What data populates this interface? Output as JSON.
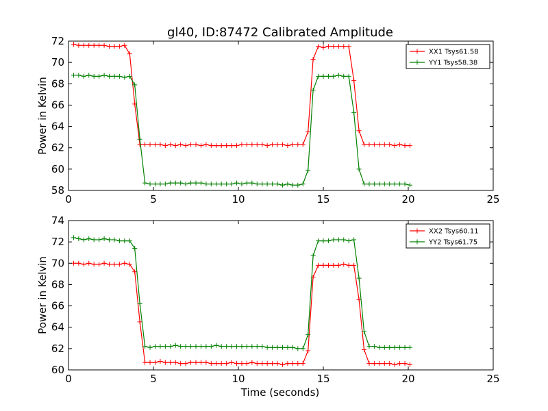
{
  "figure": {
    "title": "gl40, ID:87472 Calibrated Amplitude",
    "xlabel": "Time (seconds)"
  },
  "chart_data": [
    {
      "type": "line",
      "ylabel": "Power in Kelvin",
      "xlim": [
        0,
        25
      ],
      "ylim": [
        58,
        72
      ],
      "xticks": [
        0,
        5,
        10,
        15,
        20,
        25
      ],
      "yticks": [
        58,
        60,
        62,
        64,
        66,
        68,
        70,
        72
      ],
      "grid": false,
      "legend_position": "top-right",
      "x": [
        0.3,
        0.6,
        0.9,
        1.2,
        1.5,
        1.8,
        2.1,
        2.4,
        2.7,
        3.0,
        3.3,
        3.6,
        3.9,
        4.2,
        4.5,
        4.8,
        5.1,
        5.4,
        5.7,
        6.0,
        6.3,
        6.6,
        6.9,
        7.2,
        7.5,
        7.8,
        8.1,
        8.4,
        8.7,
        9.0,
        9.3,
        9.6,
        9.9,
        10.2,
        10.5,
        10.8,
        11.1,
        11.4,
        11.7,
        12.0,
        12.3,
        12.6,
        12.9,
        13.2,
        13.5,
        13.8,
        14.1,
        14.4,
        14.7,
        15.0,
        15.3,
        15.6,
        15.9,
        16.2,
        16.5,
        16.8,
        17.1,
        17.4,
        17.7,
        18.0,
        18.3,
        18.6,
        18.9,
        19.2,
        19.5,
        19.8,
        20.1
      ],
      "series": [
        {
          "name": "XX1 Tsys61.58",
          "color": "#ff0000",
          "values": [
            71.7,
            71.6,
            71.6,
            71.6,
            71.6,
            71.6,
            71.6,
            71.5,
            71.5,
            71.5,
            71.6,
            70.8,
            66.1,
            62.3,
            62.3,
            62.3,
            62.3,
            62.3,
            62.2,
            62.3,
            62.2,
            62.3,
            62.2,
            62.3,
            62.3,
            62.2,
            62.3,
            62.2,
            62.2,
            62.2,
            62.2,
            62.2,
            62.2,
            62.3,
            62.3,
            62.3,
            62.3,
            62.3,
            62.2,
            62.3,
            62.3,
            62.3,
            62.2,
            62.3,
            62.3,
            62.3,
            63.5,
            70.3,
            71.5,
            71.4,
            71.5,
            71.5,
            71.5,
            71.5,
            71.5,
            68.3,
            63.6,
            62.3,
            62.3,
            62.3,
            62.3,
            62.3,
            62.3,
            62.2,
            62.3,
            62.2,
            62.2
          ]
        },
        {
          "name": "YY1 Tsys58.38",
          "color": "#008000",
          "values": [
            68.8,
            68.8,
            68.7,
            68.8,
            68.7,
            68.7,
            68.8,
            68.7,
            68.7,
            68.7,
            68.6,
            68.7,
            67.9,
            62.8,
            58.7,
            58.6,
            58.6,
            58.6,
            58.6,
            58.7,
            58.7,
            58.7,
            58.6,
            58.7,
            58.7,
            58.7,
            58.6,
            58.6,
            58.6,
            58.6,
            58.6,
            58.6,
            58.7,
            58.6,
            58.7,
            58.7,
            58.6,
            58.6,
            58.6,
            58.6,
            58.6,
            58.5,
            58.6,
            58.5,
            58.5,
            58.6,
            59.9,
            67.4,
            68.7,
            68.7,
            68.7,
            68.7,
            68.8,
            68.7,
            68.7,
            65.3,
            60.0,
            58.6,
            58.6,
            58.6,
            58.6,
            58.6,
            58.6,
            58.6,
            58.6,
            58.6,
            58.5
          ]
        }
      ]
    },
    {
      "type": "line",
      "ylabel": "Power in Kelvin",
      "xlabel": "Time (seconds)",
      "xlim": [
        0,
        25
      ],
      "ylim": [
        60,
        74
      ],
      "xticks": [
        0,
        5,
        10,
        15,
        20,
        25
      ],
      "yticks": [
        60,
        62,
        64,
        66,
        68,
        70,
        72,
        74
      ],
      "grid": false,
      "legend_position": "top-right",
      "x": [
        0.3,
        0.6,
        0.9,
        1.2,
        1.5,
        1.8,
        2.1,
        2.4,
        2.7,
        3.0,
        3.3,
        3.6,
        3.9,
        4.2,
        4.5,
        4.8,
        5.1,
        5.4,
        5.7,
        6.0,
        6.3,
        6.6,
        6.9,
        7.2,
        7.5,
        7.8,
        8.1,
        8.4,
        8.7,
        9.0,
        9.3,
        9.6,
        9.9,
        10.2,
        10.5,
        10.8,
        11.1,
        11.4,
        11.7,
        12.0,
        12.3,
        12.6,
        12.9,
        13.2,
        13.5,
        13.8,
        14.1,
        14.4,
        14.7,
        15.0,
        15.3,
        15.6,
        15.9,
        16.2,
        16.5,
        16.8,
        17.1,
        17.4,
        17.7,
        18.0,
        18.3,
        18.6,
        18.9,
        19.2,
        19.5,
        19.8,
        20.1
      ],
      "series": [
        {
          "name": "XX2 Tsys60.11",
          "color": "#ff0000",
          "values": [
            70.0,
            70.0,
            69.9,
            70.0,
            69.9,
            69.9,
            70.0,
            69.9,
            69.9,
            69.9,
            70.0,
            69.9,
            69.2,
            64.5,
            60.7,
            60.7,
            60.7,
            60.8,
            60.7,
            60.7,
            60.7,
            60.6,
            60.6,
            60.7,
            60.7,
            60.7,
            60.7,
            60.6,
            60.6,
            60.6,
            60.6,
            60.7,
            60.6,
            60.6,
            60.6,
            60.7,
            60.6,
            60.6,
            60.6,
            60.6,
            60.6,
            60.5,
            60.6,
            60.6,
            60.6,
            60.6,
            61.8,
            68.7,
            69.8,
            69.8,
            69.8,
            69.8,
            69.8,
            69.9,
            69.8,
            69.8,
            66.6,
            61.9,
            60.6,
            60.6,
            60.6,
            60.6,
            60.6,
            60.5,
            60.6,
            60.6,
            60.5
          ]
        },
        {
          "name": "YY2 Tsys61.75",
          "color": "#008000",
          "values": [
            72.4,
            72.3,
            72.2,
            72.3,
            72.2,
            72.2,
            72.3,
            72.2,
            72.2,
            72.1,
            72.1,
            72.1,
            71.4,
            66.2,
            62.2,
            62.1,
            62.2,
            62.2,
            62.2,
            62.2,
            62.3,
            62.2,
            62.2,
            62.2,
            62.2,
            62.2,
            62.2,
            62.2,
            62.3,
            62.2,
            62.2,
            62.2,
            62.2,
            62.2,
            62.2,
            62.2,
            62.2,
            62.2,
            62.1,
            62.1,
            62.1,
            62.1,
            62.1,
            62.1,
            62.0,
            62.0,
            63.3,
            70.7,
            72.1,
            72.1,
            72.1,
            72.2,
            72.2,
            72.2,
            72.1,
            72.2,
            68.6,
            63.6,
            62.2,
            62.2,
            62.1,
            62.1,
            62.1,
            62.1,
            62.1,
            62.1,
            62.1
          ]
        }
      ]
    }
  ]
}
